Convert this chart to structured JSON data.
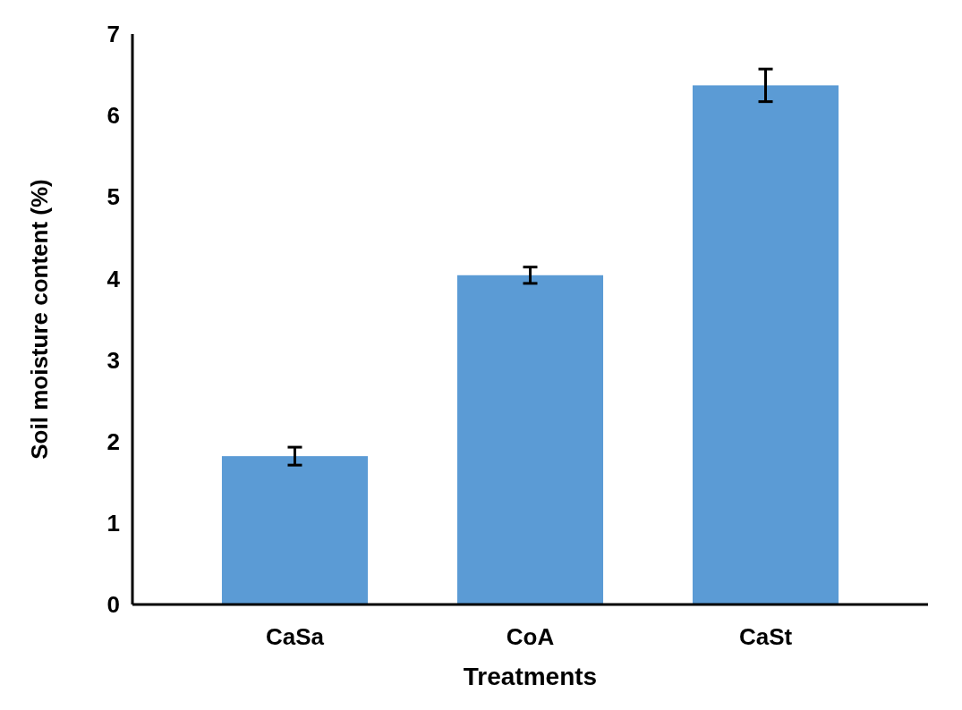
{
  "chart_data": {
    "type": "bar",
    "xlabel": "Treatments",
    "ylabel": "Soil moisture content (%)",
    "categories": [
      "CaSa",
      "CoA",
      "CaSt"
    ],
    "values": [
      1.82,
      4.04,
      6.37
    ],
    "errors": [
      0.11,
      0.1,
      0.2
    ],
    "color": "#5b9bd5",
    "ylim": [
      0,
      7
    ],
    "yticks": [
      0,
      1,
      2,
      3,
      4,
      5,
      6,
      7
    ]
  }
}
